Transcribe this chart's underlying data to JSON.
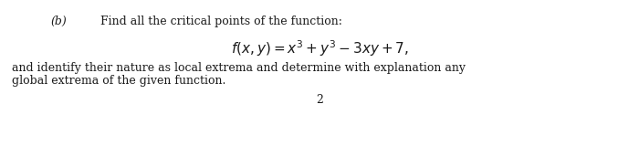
{
  "label_b": "(b)",
  "line1": "Find all the critical points of the function:",
  "formula": "$f(x, y) = x^3 + y^3 - 3xy + 7,$",
  "line2": "and identify their nature as local extrema and determine with explanation any",
  "line3": "global extrema of the given function.",
  "page_number": "2",
  "bg_color": "#ffffff",
  "text_color": "#1a1a1a",
  "font_size_body": 9.0,
  "font_size_formula": 11.0,
  "font_size_page": 9.0
}
